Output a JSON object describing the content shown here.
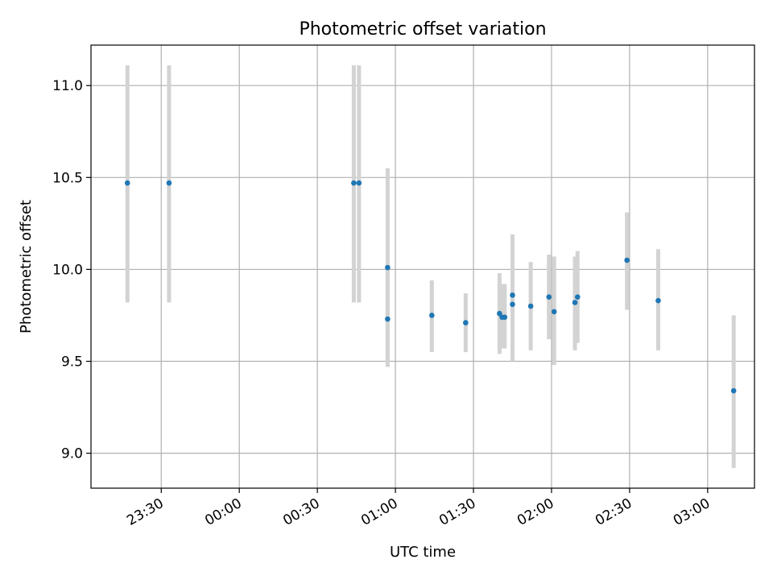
{
  "chart_data": {
    "type": "scatter",
    "title": "Photometric offset variation",
    "xlabel": "UTC time",
    "ylabel": "Photometric offset",
    "x_unit": "UTC time",
    "xlim": [
      "23:03",
      "03:18"
    ],
    "ylim": [
      8.81,
      11.22
    ],
    "xticks": [
      "23:30",
      "00:00",
      "00:30",
      "01:00",
      "01:30",
      "02:00",
      "02:30",
      "03:00"
    ],
    "yticks": [
      "9.0",
      "9.5",
      "10.0",
      "10.5",
      "11.0"
    ],
    "grid": true,
    "legend": "none",
    "marker_color": "#1f77b4",
    "errorbar_color": "#d3d3d3",
    "points": [
      {
        "time": "23:17",
        "y": 10.47,
        "ylow": 9.82,
        "yhigh": 11.11
      },
      {
        "time": "23:33",
        "y": 10.47,
        "ylow": 9.82,
        "yhigh": 11.11
      },
      {
        "time": "00:44",
        "y": 10.47,
        "ylow": 9.82,
        "yhigh": 11.11
      },
      {
        "time": "00:46",
        "y": 10.47,
        "ylow": 9.82,
        "yhigh": 11.11
      },
      {
        "time": "00:57",
        "y": 10.01,
        "ylow": 9.47,
        "yhigh": 10.55
      },
      {
        "time": "00:57",
        "y": 9.73,
        "ylow": 9.47,
        "yhigh": 10.0
      },
      {
        "time": "01:14",
        "y": 9.75,
        "ylow": 9.55,
        "yhigh": 9.94
      },
      {
        "time": "01:27",
        "y": 9.71,
        "ylow": 9.55,
        "yhigh": 9.87
      },
      {
        "time": "01:40",
        "y": 9.76,
        "ylow": 9.54,
        "yhigh": 9.98
      },
      {
        "time": "01:41",
        "y": 9.74,
        "ylow": 9.57,
        "yhigh": 9.92
      },
      {
        "time": "01:42",
        "y": 9.74,
        "ylow": 9.57,
        "yhigh": 9.92
      },
      {
        "time": "01:45",
        "y": 9.86,
        "ylow": 9.5,
        "yhigh": 10.19
      },
      {
        "time": "01:45",
        "y": 9.81,
        "ylow": 9.5,
        "yhigh": 10.12
      },
      {
        "time": "01:52",
        "y": 9.8,
        "ylow": 9.56,
        "yhigh": 10.04
      },
      {
        "time": "01:59",
        "y": 9.85,
        "ylow": 9.62,
        "yhigh": 10.08
      },
      {
        "time": "02:01",
        "y": 9.77,
        "ylow": 9.48,
        "yhigh": 10.07
      },
      {
        "time": "02:09",
        "y": 9.82,
        "ylow": 9.56,
        "yhigh": 10.07
      },
      {
        "time": "02:10",
        "y": 9.85,
        "ylow": 9.6,
        "yhigh": 10.1
      },
      {
        "time": "02:29",
        "y": 10.05,
        "ylow": 9.78,
        "yhigh": 10.31
      },
      {
        "time": "02:41",
        "y": 9.83,
        "ylow": 9.56,
        "yhigh": 10.11
      },
      {
        "time": "03:10",
        "y": 9.34,
        "ylow": 8.92,
        "yhigh": 9.75
      }
    ]
  }
}
